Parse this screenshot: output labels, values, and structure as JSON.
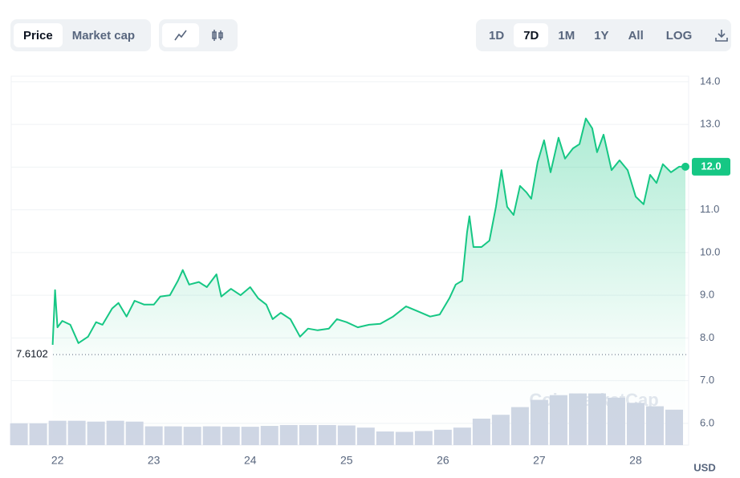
{
  "ui": {
    "tabs": [
      "Price",
      "Market cap"
    ],
    "ranges": [
      "1D",
      "7D",
      "1M",
      "1Y",
      "All"
    ],
    "log_button": "LOG",
    "active_tab": "Price",
    "active_range": "7D"
  },
  "chart_data": {
    "type": "line",
    "color": "#16c784",
    "xlim": [
      21.52,
      28.55
    ],
    "xticks": [
      22,
      23,
      24,
      25,
      26,
      27,
      28
    ],
    "ylim": [
      5.49,
      14.13
    ],
    "yticks": [
      {
        "value": 6,
        "label": "6.0"
      },
      {
        "value": 7,
        "label": "7.0"
      },
      {
        "value": 8,
        "label": "8.0"
      },
      {
        "value": 9,
        "label": "9.0"
      },
      {
        "value": 10,
        "label": "10.0"
      },
      {
        "value": 11,
        "label": "11.0"
      },
      {
        "value": 12,
        "label": "12.0"
      },
      {
        "value": 13,
        "label": "13.0"
      },
      {
        "value": 14,
        "label": "14.0"
      }
    ],
    "grid": true,
    "reference": 7.6102,
    "current_price": {
      "value": 12.01,
      "label": "12.0"
    },
    "unit": "USD",
    "watermark": "CoinMarketCap",
    "x": [
      21.95,
      21.975,
      22.0,
      22.05,
      22.133,
      22.217,
      22.317,
      22.4,
      22.467,
      22.567,
      22.633,
      22.717,
      22.8,
      22.9,
      23.0,
      23.067,
      23.167,
      23.25,
      23.3,
      23.367,
      23.467,
      23.55,
      23.6,
      23.65,
      23.7,
      23.8,
      23.9,
      24.0,
      24.083,
      24.167,
      24.233,
      24.317,
      24.417,
      24.517,
      24.6,
      24.7,
      24.817,
      24.9,
      25.0,
      25.117,
      25.233,
      25.35,
      25.483,
      25.617,
      25.733,
      25.867,
      25.967,
      26.067,
      26.133,
      26.2,
      26.25,
      26.275,
      26.317,
      26.4,
      26.483,
      26.55,
      26.608,
      26.667,
      26.733,
      26.8,
      26.867,
      26.917,
      26.983,
      27.05,
      27.117,
      27.2,
      27.267,
      27.35,
      27.417,
      27.483,
      27.55,
      27.6,
      27.667,
      27.75,
      27.833,
      27.917,
      28.0,
      28.083,
      28.15,
      28.217,
      28.283,
      28.367,
      28.45,
      28.517
    ],
    "series": [
      {
        "name": "Price",
        "color": "#16c784",
        "values": [
          7.84,
          9.12,
          8.25,
          8.4,
          8.31,
          7.88,
          8.03,
          8.37,
          8.31,
          8.69,
          8.82,
          8.5,
          8.87,
          8.78,
          8.78,
          8.97,
          9.0,
          9.34,
          9.59,
          9.25,
          9.31,
          9.19,
          9.34,
          9.49,
          8.97,
          9.15,
          9.0,
          9.19,
          8.93,
          8.78,
          8.44,
          8.59,
          8.44,
          8.03,
          8.22,
          8.18,
          8.22,
          8.44,
          8.37,
          8.25,
          8.31,
          8.33,
          8.5,
          8.74,
          8.63,
          8.5,
          8.55,
          8.93,
          9.25,
          9.34,
          10.47,
          10.85,
          10.13,
          10.13,
          10.28,
          11.07,
          11.93,
          11.07,
          10.88,
          11.56,
          11.41,
          11.26,
          12.12,
          12.63,
          11.88,
          12.69,
          12.2,
          12.44,
          12.54,
          13.14,
          12.91,
          12.35,
          12.76,
          11.93,
          12.16,
          11.93,
          11.31,
          11.13,
          11.82,
          11.63,
          12.07,
          11.88,
          12.01,
          12.01
        ]
      }
    ],
    "volume": {
      "x": [
        21.6,
        21.8,
        22.0,
        22.2,
        22.4,
        22.6,
        22.8,
        23.0,
        23.2,
        23.4,
        23.6,
        23.8,
        24.0,
        24.2,
        24.4,
        24.6,
        24.8,
        25.0,
        25.2,
        25.4,
        25.6,
        25.8,
        26.0,
        26.2,
        26.4,
        26.6,
        26.8,
        27.0,
        27.2,
        27.4,
        27.6,
        27.8,
        28.0,
        28.2,
        28.4
      ],
      "values": [
        6.0,
        6.0,
        6.06,
        6.06,
        6.04,
        6.06,
        6.04,
        5.93,
        5.93,
        5.92,
        5.93,
        5.92,
        5.92,
        5.94,
        5.96,
        5.96,
        5.96,
        5.95,
        5.9,
        5.81,
        5.8,
        5.82,
        5.85,
        5.9,
        6.11,
        6.2,
        6.38,
        6.55,
        6.66,
        6.7,
        6.7,
        6.6,
        6.48,
        6.4,
        6.32
      ],
      "color": "#cfd6e4"
    }
  }
}
